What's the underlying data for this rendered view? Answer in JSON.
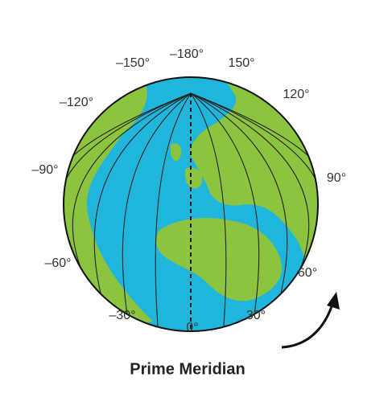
{
  "labels": [
    "–180°",
    "–150°",
    "150°",
    "–120°",
    "120°",
    "–90°",
    "90°",
    "–60°",
    "60°",
    "–30°",
    "0°",
    "30°"
  ],
  "caption": "Prime Meridian"
}
